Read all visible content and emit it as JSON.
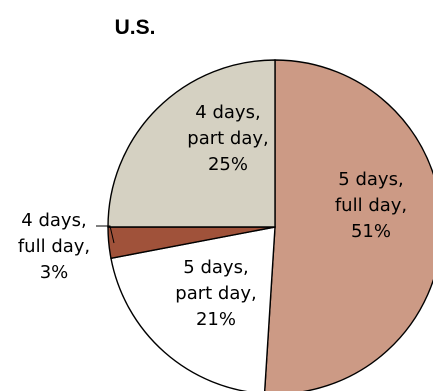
{
  "chart_data": {
    "type": "pie",
    "title": "U.S.",
    "slices": [
      {
        "label_lines": [
          "5 days,",
          "full day,",
          "51%"
        ],
        "value": 51,
        "color": "#cc9a85"
      },
      {
        "label_lines": [
          "5 days,",
          "part day,",
          "21%"
        ],
        "value": 21,
        "color": "#ffffff"
      },
      {
        "label_lines": [
          "4 days,",
          "full day,",
          "3%"
        ],
        "value": 3,
        "color": "#a0523a"
      },
      {
        "label_lines": [
          "4 days,",
          "part day,",
          "25%"
        ],
        "value": 25,
        "color": "#d5d1c2"
      }
    ],
    "outline_color": "#000000"
  }
}
